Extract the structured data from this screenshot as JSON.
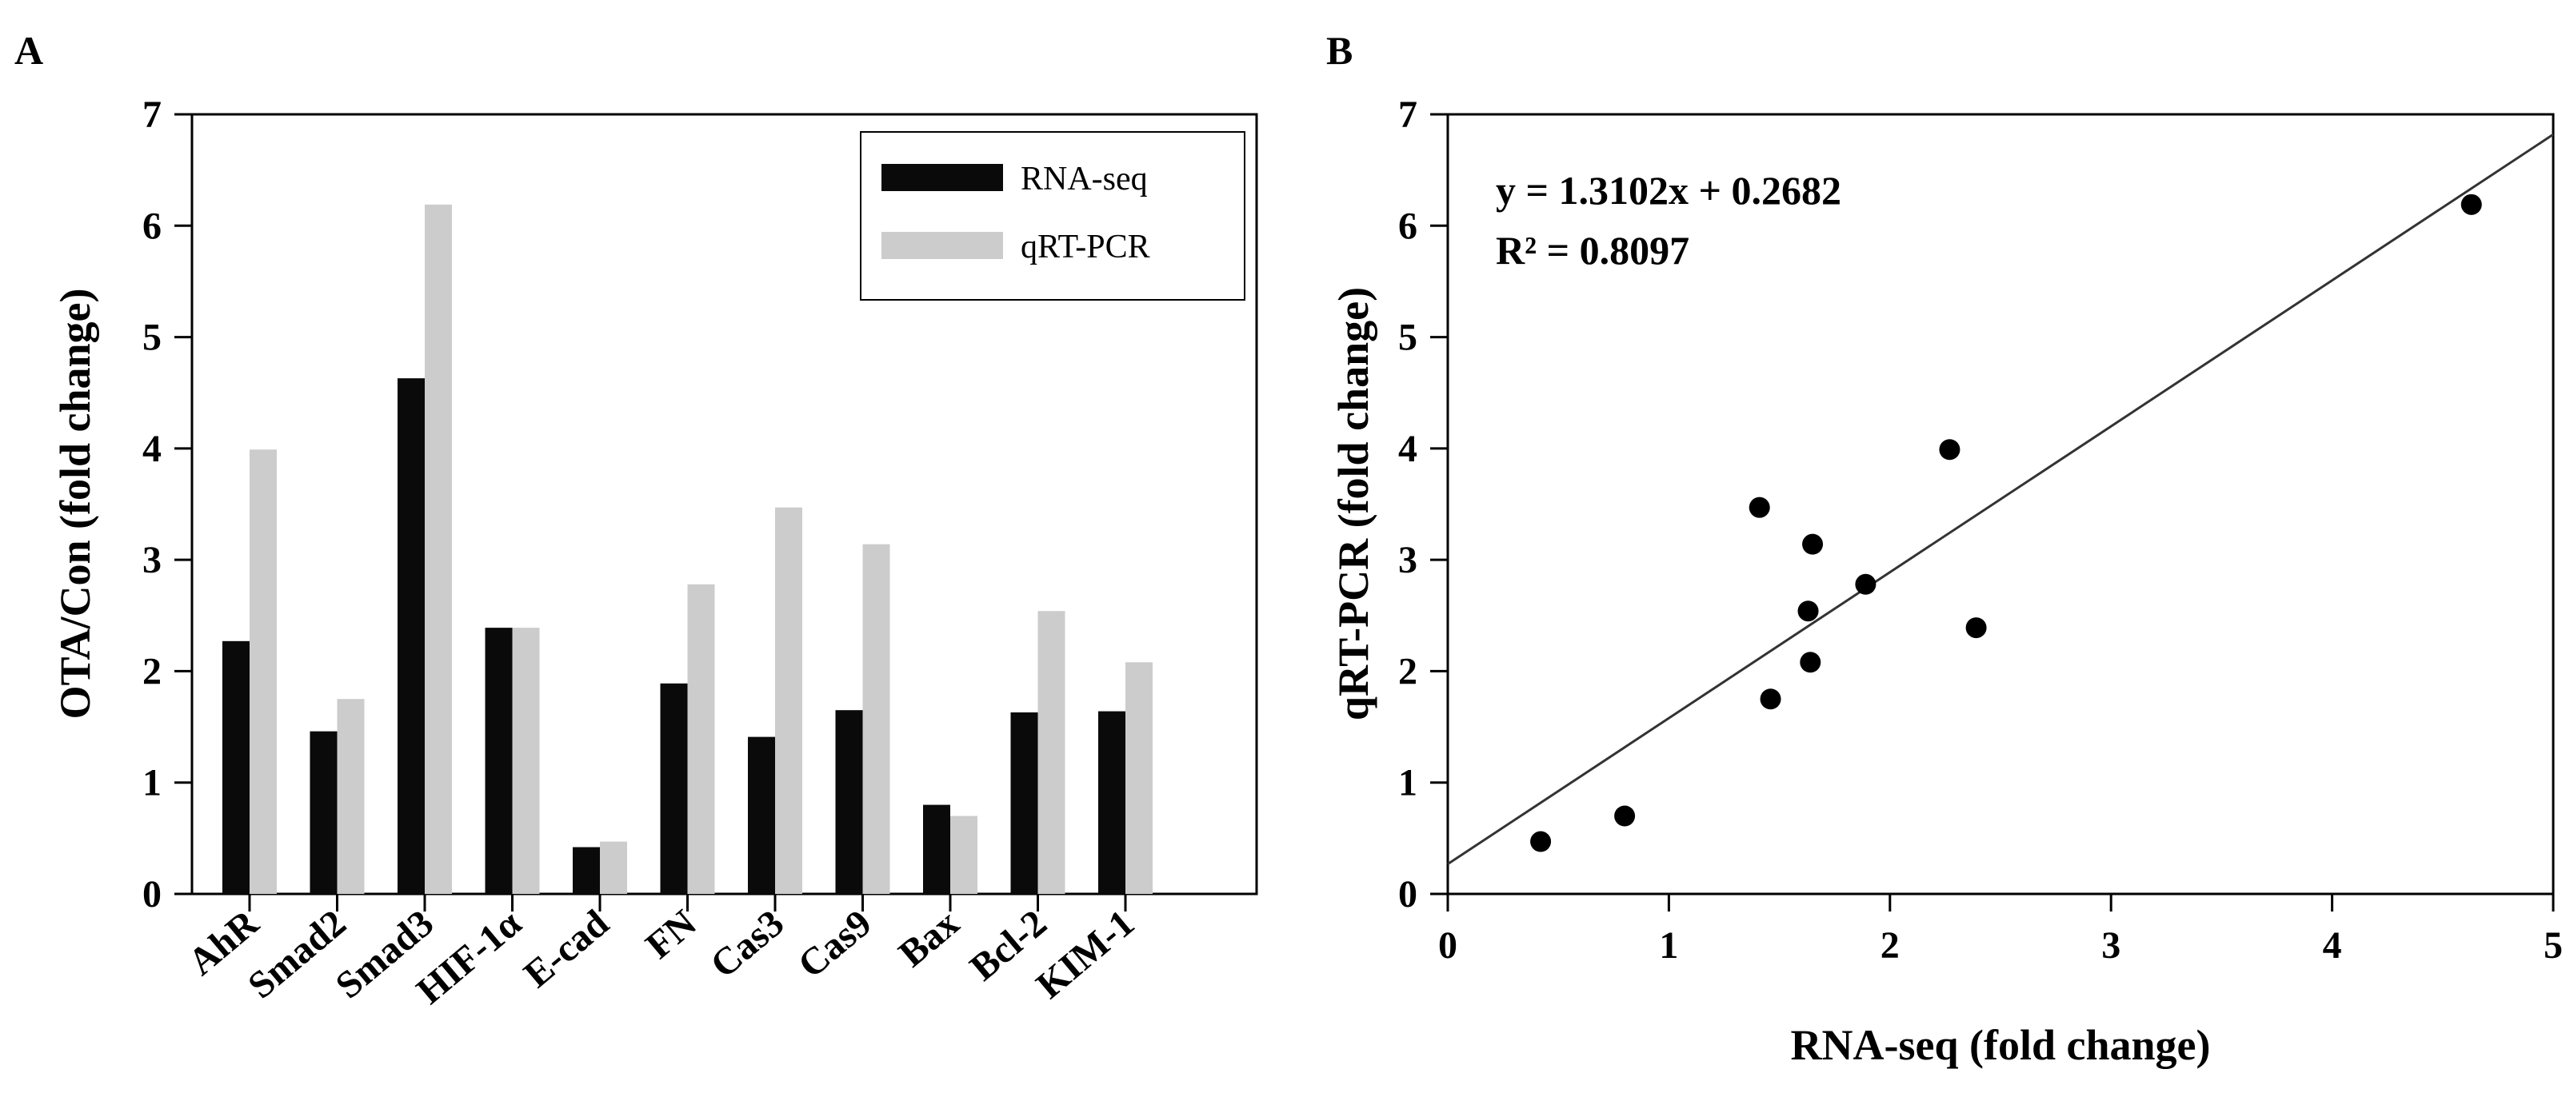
{
  "chart_data": [
    {
      "panel": "A",
      "type": "bar",
      "ylabel": "OTA/Con (fold change)",
      "xlabel": "",
      "ylim": [
        0,
        7
      ],
      "yticks": [
        "0",
        "1",
        "2",
        "3",
        "4",
        "5",
        "6",
        "7"
      ],
      "categories": [
        "AhR",
        "Smad2",
        "Smad3",
        "HIF-1α",
        "E-cad",
        "FN",
        "Cas3",
        "Cas9",
        "Bax",
        "Bcl-2",
        "KIM-1"
      ],
      "series": [
        {
          "name": "RNA-seq",
          "color": "#0a0a0a",
          "values": [
            2.27,
            1.46,
            4.63,
            2.39,
            0.42,
            1.89,
            1.41,
            1.65,
            0.8,
            1.63,
            1.64
          ]
        },
        {
          "name": "qRT-PCR",
          "color": "#cccccc",
          "values": [
            3.99,
            1.75,
            6.19,
            2.39,
            0.47,
            2.78,
            3.47,
            3.14,
            0.7,
            2.54,
            2.08
          ]
        }
      ],
      "legend_position": "top-right"
    },
    {
      "panel": "B",
      "type": "scatter",
      "xlabel": "RNA-seq (fold change)",
      "ylabel": "qRT-PCR (fold change)",
      "xlim": [
        0,
        5
      ],
      "ylim": [
        0,
        7
      ],
      "xticks": [
        "0",
        "1",
        "2",
        "3",
        "4",
        "5"
      ],
      "yticks": [
        "0",
        "1",
        "2",
        "3",
        "4",
        "5",
        "6",
        "7"
      ],
      "points": [
        {
          "x": 0.42,
          "y": 0.47
        },
        {
          "x": 0.8,
          "y": 0.7
        },
        {
          "x": 1.41,
          "y": 3.47
        },
        {
          "x": 1.46,
          "y": 1.75
        },
        {
          "x": 1.63,
          "y": 2.54
        },
        {
          "x": 1.64,
          "y": 2.08
        },
        {
          "x": 1.65,
          "y": 3.14
        },
        {
          "x": 1.89,
          "y": 2.78
        },
        {
          "x": 2.27,
          "y": 3.99
        },
        {
          "x": 2.39,
          "y": 2.39
        },
        {
          "x": 4.63,
          "y": 6.19
        }
      ],
      "fit": {
        "slope": 1.3102,
        "intercept": 0.2682
      },
      "equation_label": "y = 1.3102x + 0.2682",
      "r2_label": "R² = 0.8097"
    }
  ]
}
